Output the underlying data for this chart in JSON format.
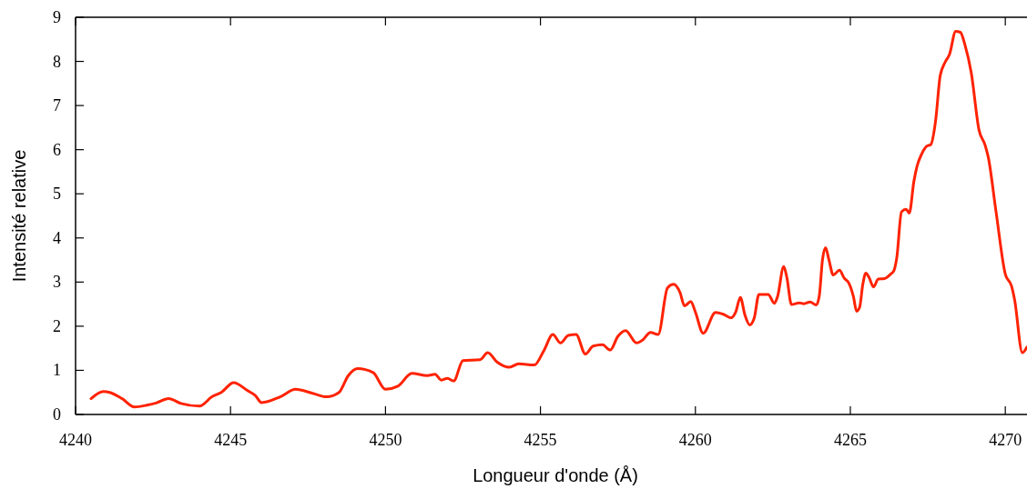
{
  "chart_data": {
    "type": "line",
    "xlabel": "Longueur d'onde (Å)",
    "ylabel": "Intensité relative",
    "xlim": [
      4240,
      4270.7
    ],
    "ylim": [
      0,
      9
    ],
    "xticks": [
      4240,
      4245,
      4250,
      4255,
      4260,
      4265,
      4270
    ],
    "yticks": [
      0,
      1,
      2,
      3,
      4,
      5,
      6,
      7,
      8,
      9
    ],
    "grid": false,
    "marker": "none",
    "line_style": "solid",
    "series": [
      {
        "color": "#ff2200",
        "x": [
          4240.5,
          4240.9,
          4241.1,
          4241.5,
          4241.9,
          4242.3,
          4242.6,
          4243.0,
          4243.4,
          4244.0,
          4244.4,
          4244.7,
          4245.1,
          4245.55,
          4245.8,
          4246.0,
          4246.6,
          4247.1,
          4247.65,
          4248.1,
          4248.5,
          4248.8,
          4249.1,
          4249.6,
          4250.0,
          4250.4,
          4250.85,
          4251.35,
          4251.6,
          4251.8,
          4252.0,
          4252.2,
          4252.5,
          4253.05,
          4253.3,
          4253.6,
          4254.0,
          4254.3,
          4254.8,
          4255.1,
          4255.4,
          4255.65,
          4255.9,
          4256.15,
          4256.45,
          4256.7,
          4257.0,
          4257.25,
          4257.5,
          4257.75,
          4258.1,
          4258.3,
          4258.55,
          4258.8,
          4259.1,
          4259.3,
          4259.5,
          4259.65,
          4259.85,
          4260.0,
          4260.25,
          4260.65,
          4260.9,
          4261.15,
          4261.3,
          4261.45,
          4261.6,
          4261.75,
          4261.9,
          4262.05,
          4262.35,
          4262.55,
          4262.65,
          4262.85,
          4262.95,
          4263.1,
          4263.35,
          4263.5,
          4263.7,
          4263.9,
          4264.0,
          4264.1,
          4264.2,
          4264.3,
          4264.45,
          4264.65,
          4264.8,
          4264.95,
          4265.1,
          4265.2,
          4265.3,
          4265.4,
          4265.5,
          4265.6,
          4265.75,
          4265.9,
          4266.1,
          4266.3,
          4266.4,
          4266.5,
          4266.65,
          4266.8,
          4266.9,
          4267.05,
          4267.15,
          4267.3,
          4267.45,
          4267.6,
          4267.75,
          4267.9,
          4268.05,
          4268.2,
          4268.4,
          4268.55,
          4268.7,
          4268.9,
          4269.15,
          4269.35,
          4269.45,
          4269.7,
          4270.0,
          4270.2,
          4270.3,
          4270.55,
          4270.7
        ],
        "values": [
          0.36,
          0.52,
          0.5,
          0.36,
          0.17,
          0.21,
          0.26,
          0.36,
          0.25,
          0.19,
          0.4,
          0.5,
          0.72,
          0.54,
          0.43,
          0.27,
          0.4,
          0.57,
          0.48,
          0.4,
          0.5,
          0.88,
          1.04,
          0.95,
          0.57,
          0.64,
          0.93,
          0.88,
          0.91,
          0.78,
          0.82,
          0.76,
          1.22,
          1.24,
          1.4,
          1.19,
          1.07,
          1.15,
          1.12,
          1.43,
          1.81,
          1.62,
          1.79,
          1.81,
          1.37,
          1.55,
          1.58,
          1.46,
          1.77,
          1.9,
          1.62,
          1.69,
          1.86,
          1.81,
          2.87,
          2.95,
          2.77,
          2.46,
          2.56,
          2.32,
          1.84,
          2.31,
          2.27,
          2.19,
          2.32,
          2.65,
          2.25,
          2.03,
          2.19,
          2.72,
          2.72,
          2.52,
          2.67,
          3.35,
          3.11,
          2.49,
          2.53,
          2.51,
          2.55,
          2.48,
          2.7,
          3.5,
          3.78,
          3.53,
          3.16,
          3.27,
          3.09,
          2.98,
          2.67,
          2.34,
          2.43,
          2.94,
          3.2,
          3.11,
          2.89,
          3.07,
          3.08,
          3.18,
          3.25,
          3.56,
          4.59,
          4.65,
          4.56,
          5.28,
          5.62,
          5.9,
          6.07,
          6.12,
          6.65,
          7.68,
          7.97,
          8.16,
          8.68,
          8.66,
          8.37,
          7.75,
          6.45,
          6.1,
          5.83,
          4.6,
          3.18,
          2.91,
          2.6,
          1.4,
          1.53
        ]
      }
    ]
  }
}
